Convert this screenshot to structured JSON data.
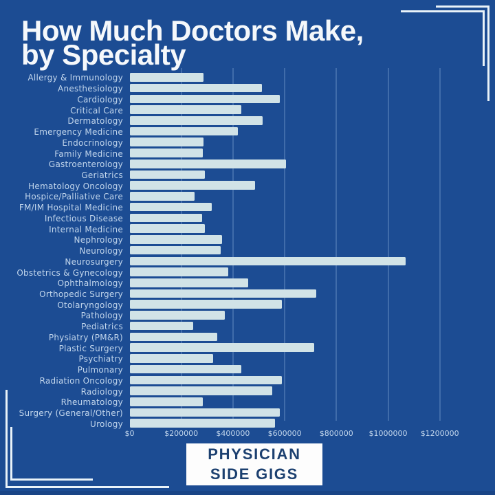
{
  "title": {
    "line1": "How Much Doctors Make,",
    "line2": "by Specialty"
  },
  "brand": {
    "line1": "PHYSICIAN",
    "line2": "SIDE GIGS"
  },
  "colors": {
    "background": "#1c4c93",
    "bar": "#d1e3e7",
    "title_text": "#f5f8fb",
    "label_text": "#c6d9ee",
    "gridline": "rgba(170,205,240,0.25)",
    "corner_bracket": "#eaf3f9",
    "brand_box_background": "#fdfdfd",
    "brand_text": "#1c4070"
  },
  "chart_data": {
    "type": "bar",
    "orientation": "horizontal",
    "title": "How Much Doctors Make, by Specialty",
    "xlabel": "",
    "ylabel": "",
    "xlim": [
      0,
      1300000
    ],
    "grid": "vertical",
    "legend": "none",
    "tick_labels": [
      "$0",
      "$200000",
      "$400000",
      "$600000",
      "$800000",
      "$1000000",
      "$1200000"
    ],
    "tick_values": [
      0,
      200000,
      400000,
      600000,
      800000,
      1000000,
      1200000
    ],
    "categories": [
      "Allergy & Immunology",
      "Anesthesiology",
      "Cardiology",
      "Critical Care",
      "Dermatology",
      "Emergency Medicine",
      "Endocrinology",
      "Family Medicine",
      "Gastroenterology",
      "Geriatrics",
      "Hematology Oncology",
      "Hospice/Palliative Care",
      "FM/IM Hospital Medicine",
      "Infectious Disease",
      "Internal Medicine",
      "Nephrology",
      "Neurology",
      "Neurosurgery",
      "Obstetrics & Gynecology",
      "Ophthalmology",
      "Orthopedic Surgery",
      "Otolaryngology",
      "Pathology",
      "Pediatrics",
      "Physiatry (PM&R)",
      "Plastic Surgery",
      "Psychiatry",
      "Pulmonary",
      "Radiation Oncology",
      "Radiology",
      "Rheumatology",
      "Surgery (General/Other)",
      "Urology"
    ],
    "values": [
      287000,
      511000,
      580000,
      432000,
      515000,
      420000,
      287000,
      284000,
      606000,
      290000,
      485000,
      251000,
      317000,
      281000,
      291000,
      358000,
      353000,
      1068000,
      381000,
      460000,
      722000,
      589000,
      368000,
      246000,
      338000,
      713000,
      324000,
      431000,
      589000,
      553000,
      283000,
      581000,
      563000
    ]
  }
}
